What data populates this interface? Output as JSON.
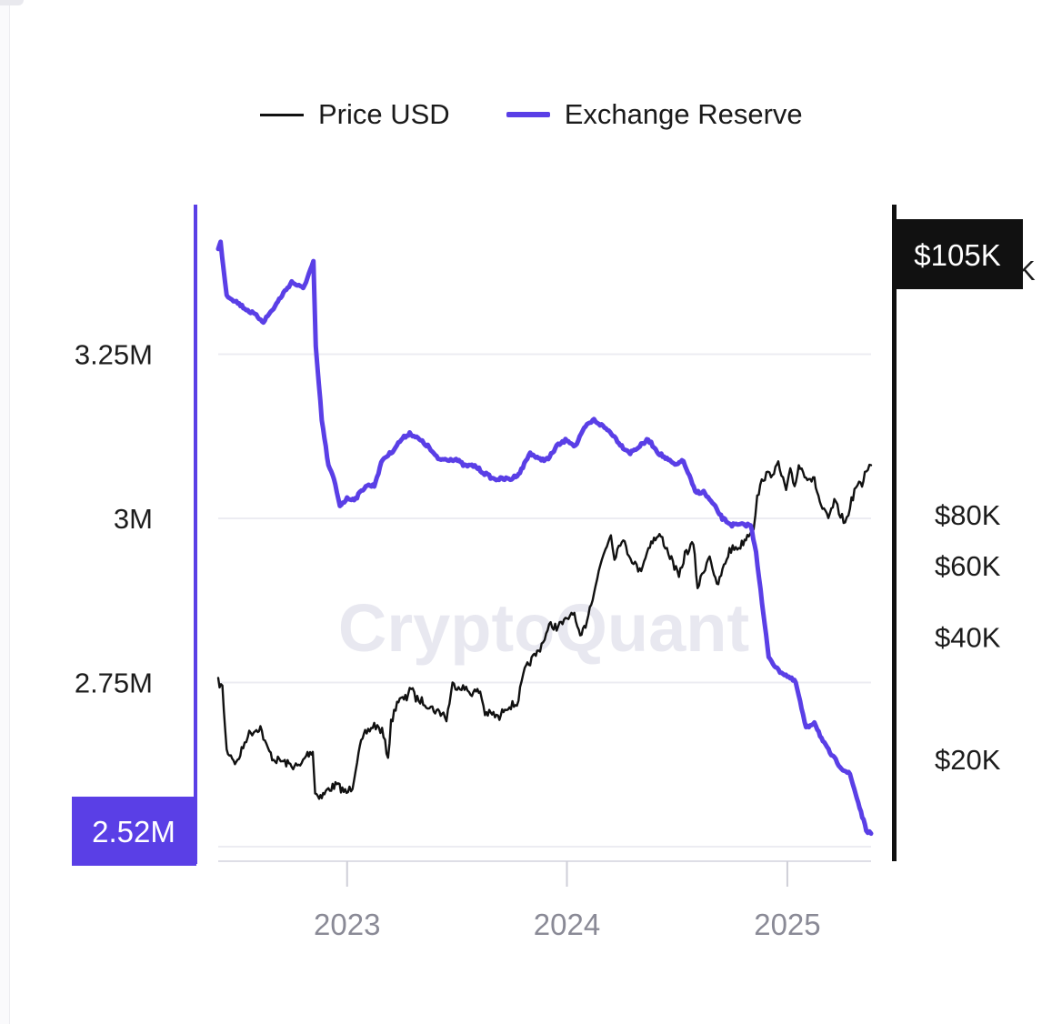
{
  "chart_data": {
    "type": "line",
    "watermark": "CryptoQuant",
    "legend": [
      {
        "label": "Price USD",
        "color": "#111111"
      },
      {
        "label": "Exchange Reserve",
        "color": "#5a3fe6"
      }
    ],
    "x_ticks": [
      "2023",
      "2024",
      "2025"
    ],
    "x_range": [
      "2022-06-01",
      "2025-05-20"
    ],
    "left_axis": {
      "ticks": [
        {
          "value": 3250000,
          "label": "3.25M"
        },
        {
          "value": 3000000,
          "label": "3M"
        },
        {
          "value": 2750000,
          "label": "2.75M"
        }
      ],
      "range": [
        2500000,
        3500000
      ],
      "current_label": "2.52M",
      "current_value": 2520000
    },
    "right_axis": {
      "scale": "log",
      "ticks": [
        {
          "value": 80000,
          "label": "$80K"
        },
        {
          "value": 60000,
          "label": "$60K"
        },
        {
          "value": 40000,
          "label": "$40K"
        },
        {
          "value": 20000,
          "label": "$20K"
        }
      ],
      "range": [
        15000,
        120000
      ],
      "current_label": "$105K",
      "current_value": 105000,
      "hidden_tick_fragment": "K"
    },
    "series": [
      {
        "name": "Price USD",
        "axis": "right",
        "color": "#111111",
        "points": [
          [
            "2022-06-01",
            31000
          ],
          [
            "2022-06-08",
            30000
          ],
          [
            "2022-06-15",
            21000
          ],
          [
            "2022-06-22",
            20500
          ],
          [
            "2022-07-01",
            19500
          ],
          [
            "2022-07-10",
            21000
          ],
          [
            "2022-07-20",
            23000
          ],
          [
            "2022-07-30",
            23500
          ],
          [
            "2022-08-10",
            24000
          ],
          [
            "2022-08-20",
            21500
          ],
          [
            "2022-09-01",
            20000
          ],
          [
            "2022-09-15",
            19800
          ],
          [
            "2022-10-01",
            19300
          ],
          [
            "2022-10-15",
            19200
          ],
          [
            "2022-10-25",
            20500
          ],
          [
            "2022-11-05",
            21000
          ],
          [
            "2022-11-09",
            16500
          ],
          [
            "2022-11-20",
            16200
          ],
          [
            "2022-12-01",
            16900
          ],
          [
            "2022-12-15",
            17300
          ],
          [
            "2022-12-31",
            16500
          ],
          [
            "2023-01-10",
            17200
          ],
          [
            "2023-01-20",
            21000
          ],
          [
            "2023-01-31",
            23100
          ],
          [
            "2023-02-15",
            24300
          ],
          [
            "2023-02-28",
            23500
          ],
          [
            "2023-03-10",
            20300
          ],
          [
            "2023-03-15",
            24500
          ],
          [
            "2023-03-25",
            27800
          ],
          [
            "2023-04-10",
            28300
          ],
          [
            "2023-04-15",
            30300
          ],
          [
            "2023-04-25",
            28300
          ],
          [
            "2023-05-10",
            27600
          ],
          [
            "2023-05-25",
            26500
          ],
          [
            "2023-06-10",
            25900
          ],
          [
            "2023-06-15",
            25100
          ],
          [
            "2023-06-25",
            30500
          ],
          [
            "2023-07-10",
            30200
          ],
          [
            "2023-07-25",
            29200
          ],
          [
            "2023-08-10",
            29400
          ],
          [
            "2023-08-18",
            26000
          ],
          [
            "2023-09-01",
            25800
          ],
          [
            "2023-09-11",
            25200
          ],
          [
            "2023-09-20",
            26900
          ],
          [
            "2023-10-10",
            27400
          ],
          [
            "2023-10-23",
            33000
          ],
          [
            "2023-11-01",
            34800
          ],
          [
            "2023-11-15",
            37000
          ],
          [
            "2023-12-05",
            43000
          ],
          [
            "2023-12-15",
            42300
          ],
          [
            "2024-01-01",
            44000
          ],
          [
            "2024-01-11",
            46500
          ],
          [
            "2024-01-23",
            39500
          ],
          [
            "2024-02-01",
            43000
          ],
          [
            "2024-02-15",
            52000
          ],
          [
            "2024-02-28",
            62000
          ],
          [
            "2024-03-05",
            66000
          ],
          [
            "2024-03-14",
            72000
          ],
          [
            "2024-03-20",
            63000
          ],
          [
            "2024-04-01",
            70000
          ],
          [
            "2024-04-13",
            64000
          ],
          [
            "2024-05-01",
            58000
          ],
          [
            "2024-05-20",
            69000
          ],
          [
            "2024-06-05",
            71000
          ],
          [
            "2024-06-25",
            61000
          ],
          [
            "2024-07-05",
            56000
          ],
          [
            "2024-07-15",
            64000
          ],
          [
            "2024-07-29",
            68000
          ],
          [
            "2024-08-05",
            53000
          ],
          [
            "2024-08-25",
            64000
          ],
          [
            "2024-09-06",
            53000
          ],
          [
            "2024-09-27",
            65500
          ],
          [
            "2024-10-15",
            67000
          ],
          [
            "2024-10-29",
            72000
          ],
          [
            "2024-11-06",
            75000
          ],
          [
            "2024-11-12",
            88000
          ],
          [
            "2024-11-22",
            99000
          ],
          [
            "2024-12-05",
            101000
          ],
          [
            "2024-12-17",
            106000
          ],
          [
            "2024-12-30",
            92000
          ],
          [
            "2025-01-06",
            102000
          ],
          [
            "2025-01-13",
            94000
          ],
          [
            "2025-01-20",
            106000
          ],
          [
            "2025-02-01",
            100000
          ],
          [
            "2025-02-15",
            97000
          ],
          [
            "2025-02-26",
            84000
          ],
          [
            "2025-03-10",
            78000
          ],
          [
            "2025-03-20",
            86000
          ],
          [
            "2025-04-07",
            76000
          ],
          [
            "2025-04-15",
            84000
          ],
          [
            "2025-04-25",
            94000
          ],
          [
            "2025-05-05",
            95000
          ],
          [
            "2025-05-12",
            104000
          ],
          [
            "2025-05-20",
            106000
          ]
        ]
      },
      {
        "name": "Exchange Reserve",
        "axis": "left",
        "color": "#5a3fe6",
        "points": [
          [
            "2022-06-01",
            3410000
          ],
          [
            "2022-06-05",
            3420000
          ],
          [
            "2022-06-15",
            3340000
          ],
          [
            "2022-07-01",
            3330000
          ],
          [
            "2022-07-15",
            3320000
          ],
          [
            "2022-08-01",
            3310000
          ],
          [
            "2022-08-15",
            3300000
          ],
          [
            "2022-09-01",
            3320000
          ],
          [
            "2022-09-15",
            3340000
          ],
          [
            "2022-10-01",
            3360000
          ],
          [
            "2022-10-20",
            3350000
          ],
          [
            "2022-11-06",
            3390000
          ],
          [
            "2022-11-10",
            3260000
          ],
          [
            "2022-11-20",
            3150000
          ],
          [
            "2022-12-01",
            3080000
          ],
          [
            "2022-12-10",
            3060000
          ],
          [
            "2022-12-20",
            3020000
          ],
          [
            "2023-01-01",
            3030000
          ],
          [
            "2023-01-15",
            3030000
          ],
          [
            "2023-02-01",
            3050000
          ],
          [
            "2023-02-15",
            3050000
          ],
          [
            "2023-03-01",
            3090000
          ],
          [
            "2023-03-15",
            3100000
          ],
          [
            "2023-04-01",
            3120000
          ],
          [
            "2023-04-15",
            3130000
          ],
          [
            "2023-05-01",
            3120000
          ],
          [
            "2023-05-15",
            3110000
          ],
          [
            "2023-06-01",
            3090000
          ],
          [
            "2023-06-15",
            3090000
          ],
          [
            "2023-07-01",
            3090000
          ],
          [
            "2023-07-15",
            3080000
          ],
          [
            "2023-08-01",
            3080000
          ],
          [
            "2023-08-15",
            3070000
          ],
          [
            "2023-09-01",
            3060000
          ],
          [
            "2023-09-15",
            3060000
          ],
          [
            "2023-10-01",
            3060000
          ],
          [
            "2023-10-15",
            3070000
          ],
          [
            "2023-11-01",
            3100000
          ],
          [
            "2023-11-15",
            3090000
          ],
          [
            "2023-12-01",
            3090000
          ],
          [
            "2023-12-15",
            3110000
          ],
          [
            "2024-01-01",
            3120000
          ],
          [
            "2024-01-15",
            3110000
          ],
          [
            "2024-02-01",
            3140000
          ],
          [
            "2024-02-15",
            3150000
          ],
          [
            "2024-03-01",
            3140000
          ],
          [
            "2024-03-15",
            3130000
          ],
          [
            "2024-04-01",
            3110000
          ],
          [
            "2024-04-15",
            3100000
          ],
          [
            "2024-05-01",
            3110000
          ],
          [
            "2024-05-15",
            3120000
          ],
          [
            "2024-06-01",
            3100000
          ],
          [
            "2024-06-15",
            3090000
          ],
          [
            "2024-07-01",
            3080000
          ],
          [
            "2024-07-10",
            3090000
          ],
          [
            "2024-07-20",
            3070000
          ],
          [
            "2024-08-01",
            3040000
          ],
          [
            "2024-08-15",
            3040000
          ],
          [
            "2024-09-01",
            3020000
          ],
          [
            "2024-09-15",
            3000000
          ],
          [
            "2024-10-01",
            2990000
          ],
          [
            "2024-10-15",
            2990000
          ],
          [
            "2024-11-01",
            2990000
          ],
          [
            "2024-11-10",
            2950000
          ],
          [
            "2024-11-20",
            2870000
          ],
          [
            "2024-12-01",
            2790000
          ],
          [
            "2024-12-15",
            2770000
          ],
          [
            "2025-01-01",
            2760000
          ],
          [
            "2025-01-15",
            2750000
          ],
          [
            "2025-02-01",
            2680000
          ],
          [
            "2025-02-15",
            2690000
          ],
          [
            "2025-03-01",
            2660000
          ],
          [
            "2025-03-15",
            2640000
          ],
          [
            "2025-04-01",
            2620000
          ],
          [
            "2025-04-15",
            2610000
          ],
          [
            "2025-05-01",
            2560000
          ],
          [
            "2025-05-12",
            2525000
          ],
          [
            "2025-05-20",
            2520000
          ]
        ]
      }
    ]
  }
}
